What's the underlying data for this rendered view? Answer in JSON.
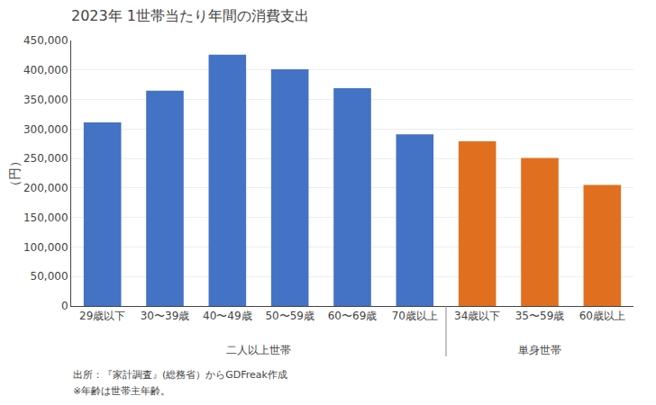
{
  "chart_data": {
    "type": "bar",
    "title": "2023年 1世帯当たり年間の消費支出",
    "ylabel": "（円）",
    "categories": [
      "29歳以下",
      "30〜39歳",
      "40〜49歳",
      "50〜59歳",
      "60〜69歳",
      "70歳以上",
      "34歳以下",
      "35〜59歳",
      "60歳以上"
    ],
    "values": [
      311000,
      365000,
      426000,
      401000,
      369000,
      291000,
      279000,
      251000,
      205000
    ],
    "colors": [
      "#4472c4",
      "#4472c4",
      "#4472c4",
      "#4472c4",
      "#4472c4",
      "#4472c4",
      "#e07020",
      "#e07020",
      "#e07020"
    ],
    "ylim": [
      0,
      450000
    ],
    "yticks": [
      0,
      {
        "value": 50000,
        "label": "50,000"
      },
      {
        "value": 100000,
        "label": "100,000"
      },
      {
        "value": 150000,
        "label": "150,000"
      },
      {
        "value": 200000,
        "label": "200,000"
      },
      {
        "value": 250000,
        "label": "250,000"
      },
      {
        "value": 300000,
        "label": "300,000"
      },
      {
        "value": 350000,
        "label": "350,000"
      },
      {
        "value": 400000,
        "label": "400,000"
      },
      {
        "value": 450000,
        "label": "450,000"
      }
    ],
    "grid": true,
    "annotations": [
      "二人以上世帯",
      "単身世帯",
      "出所：『家計調査』(総務省）からGDFreak作成",
      "※年齢は世帯主年齢。"
    ]
  }
}
